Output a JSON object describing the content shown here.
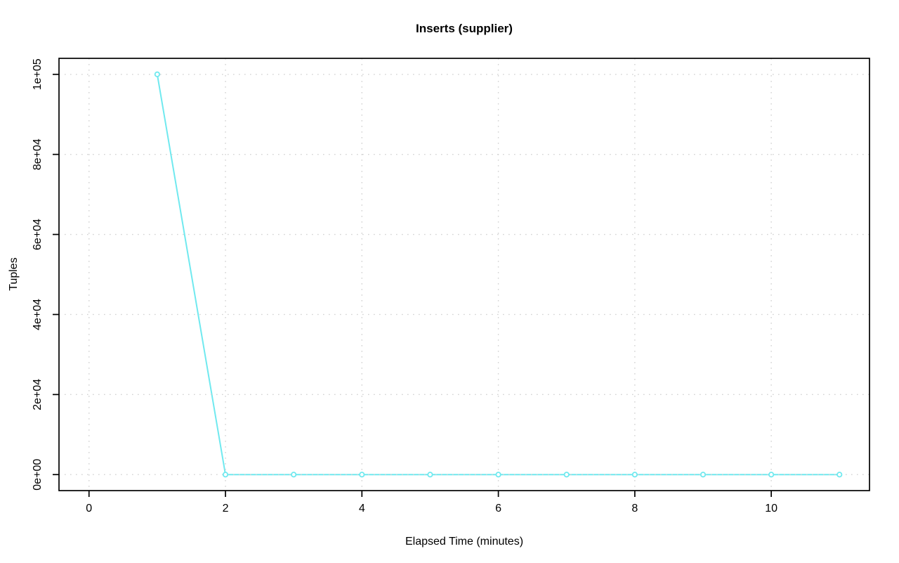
{
  "chart_data": {
    "type": "line",
    "title": "Inserts (supplier)",
    "xlabel": "Elapsed Time (minutes)",
    "ylabel": "Tuples",
    "x": [
      1,
      2,
      3,
      4,
      5,
      6,
      7,
      8,
      9,
      10,
      11
    ],
    "y": [
      100000,
      0,
      0,
      0,
      0,
      0,
      0,
      0,
      0,
      0,
      0
    ],
    "xticks": [
      0,
      2,
      4,
      6,
      8,
      10
    ],
    "xtick_labels": [
      "0",
      "2",
      "4",
      "6",
      "8",
      "10"
    ],
    "yticks": [
      0,
      20000,
      40000,
      60000,
      80000,
      100000
    ],
    "ytick_labels": [
      "0e+00",
      "2e+04",
      "4e+04",
      "6e+04",
      "8e+04",
      "1e+05"
    ],
    "xlim": [
      -0.44,
      11.44
    ],
    "ylim": [
      -4000,
      104000
    ],
    "grid": true,
    "grid_style": "dotted",
    "legend_position": "none",
    "marker": "open-circle",
    "colors": {
      "series": "#70e9ef",
      "marker_fill": "#ffffff",
      "grid": "#d2d2d2",
      "axis": "#000000",
      "text": "#000000",
      "background": "#ffffff"
    }
  }
}
